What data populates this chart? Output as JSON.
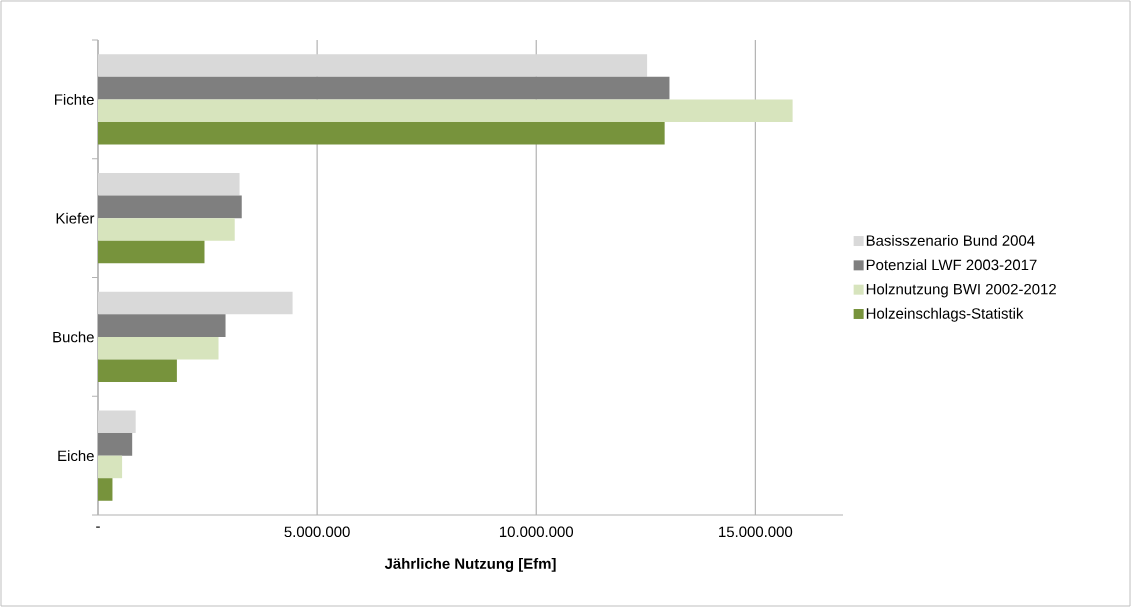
{
  "chart_data": {
    "type": "bar",
    "orientation": "horizontal",
    "xlabel": "Jährliche Nutzung [Efm]",
    "categories": [
      "Fichte",
      "Kiefer",
      "Buche",
      "Eiche"
    ],
    "series": [
      {
        "name": "Basisszenario Bund 2004",
        "color": "#d9d9d9",
        "values": [
          12530000,
          3230000,
          4440000,
          860000
        ]
      },
      {
        "name": "Potenzial LWF 2003-2017",
        "color": "#7f7f7f",
        "values": [
          13040000,
          3280000,
          2910000,
          780000
        ]
      },
      {
        "name": "Holznutzung BWI 2002-2012",
        "color": "#d7e4bd",
        "values": [
          15850000,
          3120000,
          2750000,
          550000
        ]
      },
      {
        "name": "Holzeinschlags-Statistik",
        "color": "#77933c",
        "values": [
          12930000,
          2430000,
          1800000,
          330000
        ]
      }
    ],
    "xlim": [
      0,
      17000000
    ],
    "xticks": [
      {
        "value": 0,
        "label": "-"
      },
      {
        "value": 5000000,
        "label": "5.000.000"
      },
      {
        "value": 10000000,
        "label": "10.000.000"
      },
      {
        "value": 15000000,
        "label": "15.000.000"
      }
    ],
    "grid": "x",
    "legend": "right"
  }
}
